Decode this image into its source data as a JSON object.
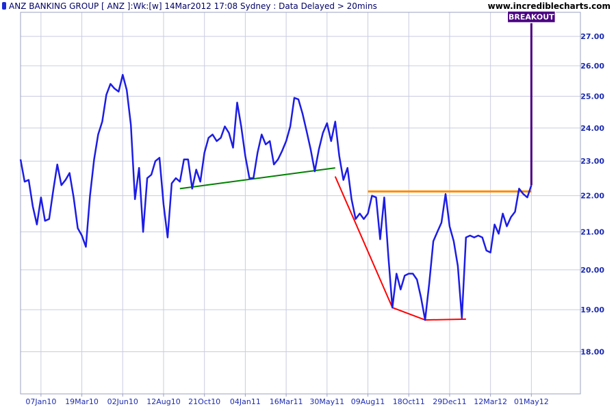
{
  "header": {
    "title": "ANZ BANKING GROUP [ ANZ ]:Wk:[w]  14Mar2012 17:08 Sydney : Data Delayed > 20mins",
    "site": "www.incrediblecharts.com",
    "legend_color": "#1c2bd6"
  },
  "chart_data": {
    "type": "line",
    "title": "ANZ BANKING GROUP [ ANZ ]:Wk:[w]",
    "x_tick_labels": [
      "07Jan10",
      "19Mar10",
      "02Jun10",
      "12Aug10",
      "21Oct10",
      "04Jan11",
      "16Mar11",
      "30May11",
      "09Aug11",
      "18Oct11",
      "29Dec11",
      "12Mar12",
      "01May12"
    ],
    "y_tick_labels": [
      "18.00",
      "19.00",
      "20.00",
      "21.00",
      "22.00",
      "23.00",
      "24.00",
      "25.00",
      "26.00",
      "27.00"
    ],
    "y_ticks": [
      18,
      19,
      20,
      21,
      22,
      23,
      24,
      25,
      26,
      27
    ],
    "x_range": [
      0,
      137
    ],
    "ylim": [
      17.05,
      27.85
    ],
    "y_scale": "log",
    "grid": true,
    "series": [
      {
        "color": "#1c1ce6",
        "values": [
          23.05,
          22.4,
          22.45,
          21.7,
          21.2,
          21.95,
          21.3,
          21.35,
          22.15,
          22.9,
          22.3,
          22.45,
          22.65,
          21.95,
          21.1,
          20.9,
          20.6,
          22.0,
          23.05,
          23.8,
          24.2,
          25.05,
          25.4,
          25.25,
          25.15,
          25.7,
          25.2,
          24.1,
          21.9,
          22.8,
          21.0,
          22.5,
          22.6,
          23.0,
          23.1,
          21.75,
          20.85,
          22.35,
          22.5,
          22.4,
          23.05,
          23.05,
          22.2,
          22.75,
          22.4,
          23.25,
          23.7,
          23.8,
          23.6,
          23.7,
          24.05,
          23.85,
          23.4,
          24.8,
          24.05,
          23.15,
          22.5,
          22.5,
          23.25,
          23.8,
          23.5,
          23.6,
          22.9,
          23.05,
          23.3,
          23.6,
          24.05,
          24.95,
          24.9,
          24.45,
          23.9,
          23.35,
          22.7,
          23.35,
          23.85,
          24.15,
          23.6,
          24.2,
          23.15,
          22.45,
          22.8,
          21.9,
          21.35,
          21.5,
          21.35,
          21.5,
          22.0,
          21.95,
          20.8,
          21.95,
          20.35,
          19.05,
          19.9,
          19.5,
          19.85,
          19.9,
          19.9,
          19.75,
          19.3,
          18.75,
          19.65,
          20.75,
          21.0,
          21.25,
          22.05,
          21.15,
          20.75,
          20.1,
          18.8,
          20.85,
          20.9,
          20.85,
          20.9,
          20.85,
          20.5,
          20.45,
          21.2,
          20.95,
          21.5,
          21.15,
          21.4,
          21.55,
          22.2,
          22.05,
          21.95,
          22.3
        ]
      }
    ],
    "annotations": {
      "trendlines": [
        {
          "color": "#008000",
          "x1": 39,
          "y1": 22.2,
          "x2": 77,
          "y2": 22.8
        },
        {
          "color": "#ff0000",
          "x1": 77,
          "y1": 22.55,
          "x2": 91,
          "y2": 19.05
        },
        {
          "color": "#ff0000",
          "x1": 91,
          "y1": 19.05,
          "x2": 99,
          "y2": 18.75
        },
        {
          "color": "#ff0000",
          "x1": 99,
          "y1": 18.75,
          "x2": 109,
          "y2": 18.77
        }
      ],
      "resistance": {
        "color": "#ff8c00",
        "x1": 85,
        "x2": 125,
        "y": 22.12
      },
      "breakout": {
        "label": "BREAKOUT",
        "color": "#4b0082",
        "x": 125,
        "y_top": 27.7,
        "y_bottom": 22.3
      }
    }
  }
}
